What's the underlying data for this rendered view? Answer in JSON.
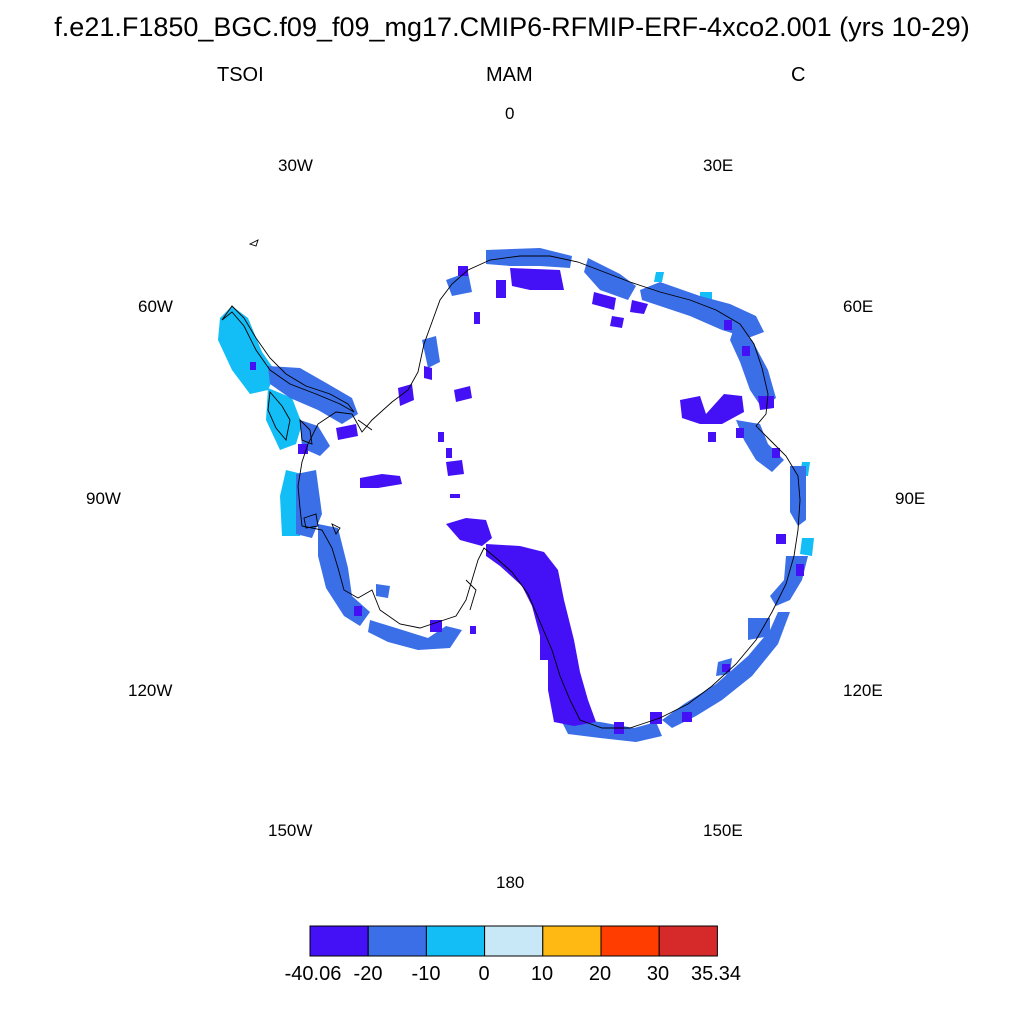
{
  "title": "f.e21.F1850_BGC.f09_f09_mg17.CMIP6-RFMIP-ERF-4xco2.001 (yrs 10-29)",
  "subtitle": {
    "left": "TSOI",
    "center": "MAM",
    "right": "C"
  },
  "longitude_labels": {
    "lon_0": "0",
    "lon_30e": "30E",
    "lon_60e": "60E",
    "lon_90e": "90E",
    "lon_120e": "120E",
    "lon_150e": "150E",
    "lon_180": "180",
    "lon_150w": "150W",
    "lon_120w": "120W",
    "lon_90w": "90W",
    "lon_60w": "60W",
    "lon_30w": "30W"
  },
  "colorbar": {
    "colors": [
      "#4410f5",
      "#3a6fe8",
      "#13bdf5",
      "#c8e8f8",
      "#ffb912",
      "#ff3d00",
      "#d62a2a"
    ],
    "labels": [
      "-40.06",
      "-20",
      "-10",
      "0",
      "10",
      "20",
      "30",
      "35.34"
    ]
  },
  "colors": {
    "coastline": "#000000",
    "background": "#ffffff"
  }
}
